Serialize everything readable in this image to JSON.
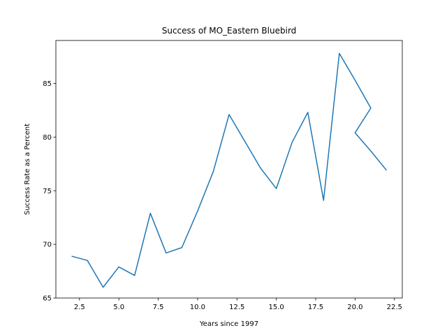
{
  "chart_data": {
    "type": "line",
    "title": "Success of MO_Eastern Bluebird",
    "xlabel": "Years since 1997",
    "ylabel": "Success Rate as a Percent",
    "xlim": [
      1.0,
      23.0
    ],
    "ylim": [
      65.0,
      89.0
    ],
    "xticks": [
      2.5,
      5.0,
      7.5,
      10.0,
      12.5,
      15.0,
      17.5,
      20.0,
      22.5
    ],
    "xtick_labels": [
      "2.5",
      "5.0",
      "7.5",
      "10.0",
      "12.5",
      "15.0",
      "17.5",
      "20.0",
      "22.5"
    ],
    "yticks": [
      65,
      70,
      75,
      80,
      85
    ],
    "ytick_labels": [
      "65",
      "70",
      "75",
      "80",
      "85"
    ],
    "grid": false,
    "line_color": "#1f77b4",
    "series": [
      {
        "x": [
          2,
          3,
          4,
          5,
          6,
          7,
          8,
          9,
          10,
          11,
          12,
          13,
          14,
          15,
          16,
          17,
          18,
          19,
          20,
          21,
          20,
          21,
          22
        ],
        "values": [
          68.9,
          68.5,
          66.0,
          67.9,
          67.1,
          72.9,
          69.2,
          69.7,
          73.1,
          76.8,
          82.1,
          79.6,
          77.1,
          75.2,
          79.5,
          82.3,
          74.1,
          87.8,
          85.3,
          82.7,
          80.4,
          78.7,
          76.9
        ]
      }
    ]
  }
}
